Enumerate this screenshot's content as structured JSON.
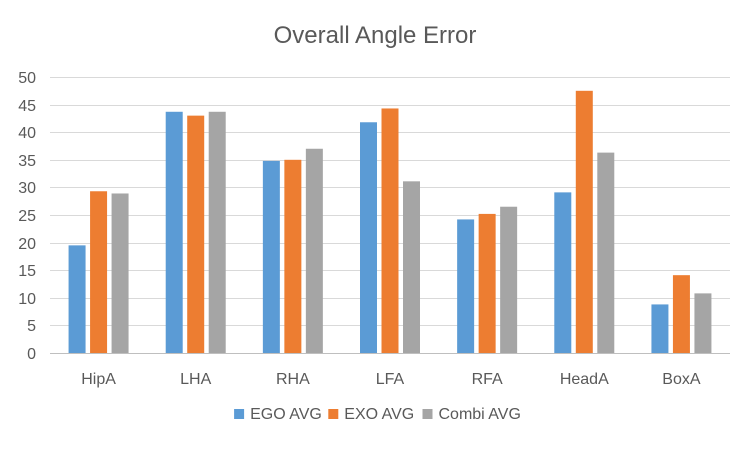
{
  "chart_data": {
    "type": "bar",
    "title": "Overall Angle Error",
    "xlabel": "",
    "ylabel": "",
    "ylim": [
      0,
      50
    ],
    "ytick_step": 5,
    "grid": true,
    "legend_position": "bottom",
    "categories": [
      "HipA",
      "LHA",
      "RHA",
      "LFA",
      "RFA",
      "HeadA",
      "BoxA"
    ],
    "series": [
      {
        "name": "EGO AVG",
        "color": "#5b9bd5",
        "values": [
          19.5,
          43.7,
          34.8,
          41.8,
          24.2,
          29.1,
          8.8
        ]
      },
      {
        "name": "EXO AVG",
        "color": "#ed7d31",
        "values": [
          29.3,
          43.0,
          35.0,
          44.3,
          25.2,
          47.5,
          14.1
        ]
      },
      {
        "name": "Combi AVG",
        "color": "#a5a5a5",
        "values": [
          28.9,
          43.7,
          37.0,
          31.1,
          26.5,
          36.3,
          10.8
        ]
      }
    ]
  }
}
